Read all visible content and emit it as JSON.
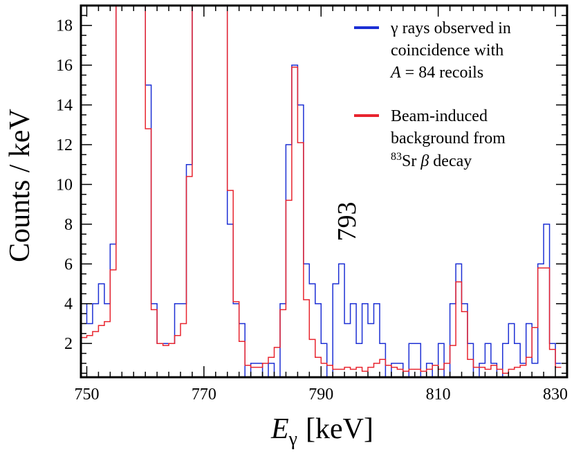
{
  "chart_data": {
    "type": "line",
    "step": true,
    "xlabel": {
      "main": "E",
      "sub": "γ",
      "unit": "[keV]"
    },
    "ylabel": "Counts / keV",
    "xlim": [
      749,
      832
    ],
    "ylim": [
      0.3,
      19
    ],
    "xticks": [
      750,
      770,
      790,
      810,
      830
    ],
    "yticks": [
      2,
      4,
      6,
      8,
      10,
      12,
      14,
      16,
      18
    ],
    "annotation": {
      "text": "793",
      "x": 794,
      "y": 6.6
    },
    "legend": {
      "position": "top-right",
      "entries": [
        {
          "series": "coincidence",
          "lines": [
            "γ rays observed in",
            "coincidence with",
            "A = 84 recoils"
          ]
        },
        {
          "series": "background",
          "lines": [
            "Beam-induced",
            "background from",
            "83Sr β decay"
          ]
        }
      ]
    },
    "series": [
      {
        "name": "γ rays observed in coincidence with A = 84 recoils",
        "color": "#1c2fd4",
        "x_start": 749,
        "bin_width": 1,
        "values": [
          4,
          3,
          4,
          5,
          4,
          7,
          30,
          30,
          30,
          30,
          30,
          15,
          4,
          2,
          2,
          2,
          4,
          4,
          11,
          30,
          30,
          30,
          30,
          30,
          30,
          8,
          4,
          3,
          0,
          1,
          1,
          0,
          1,
          0,
          4,
          12,
          16,
          14,
          6,
          5,
          4,
          2,
          0,
          5,
          6,
          3,
          4,
          2,
          4,
          3,
          4,
          2,
          0,
          1,
          1,
          0,
          2,
          2,
          0,
          1,
          0,
          2,
          0,
          4,
          6,
          4,
          2,
          0,
          1,
          2,
          1,
          0,
          2,
          3,
          2,
          1,
          3,
          1,
          6,
          8,
          2,
          1
        ]
      },
      {
        "name": "Beam-induced background from 83Sr β decay",
        "color": "#e8242e",
        "x_start": 749,
        "bin_width": 1,
        "values": [
          2.3,
          2.4,
          2.6,
          2.9,
          3.1,
          5.7,
          30,
          30,
          30,
          30,
          30,
          12.8,
          3.7,
          2.0,
          1.9,
          2.0,
          2.4,
          3.0,
          10.4,
          30,
          30,
          30,
          30,
          30,
          30,
          9.7,
          4.1,
          2.1,
          0.9,
          0.8,
          0.8,
          1.0,
          1.3,
          1.8,
          3.7,
          9.2,
          15.9,
          12.1,
          4.2,
          2.2,
          1.3,
          1.0,
          0.9,
          0.7,
          0.7,
          0.8,
          0.7,
          0.8,
          0.6,
          0.8,
          1.0,
          1.2,
          0.9,
          0.8,
          0.7,
          0.6,
          0.7,
          0.7,
          0.6,
          0.7,
          0.9,
          0.7,
          1.0,
          1.9,
          5.1,
          3.6,
          1.2,
          0.8,
          0.8,
          0.7,
          0.9,
          0.7,
          0.5,
          0.7,
          0.8,
          0.9,
          1.3,
          2.8,
          5.8,
          5.8,
          1.7,
          0.8
        ]
      }
    ]
  }
}
